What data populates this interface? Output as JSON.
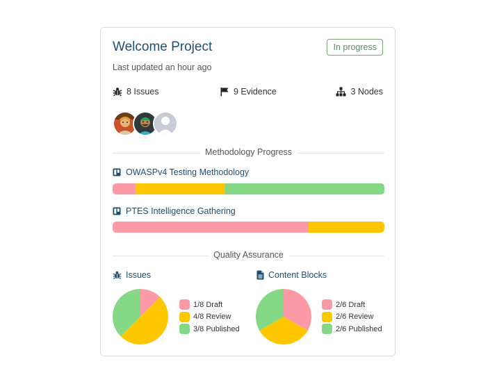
{
  "project": {
    "title": "Welcome Project",
    "status": "In progress",
    "updated": "Last updated an hour ago"
  },
  "stats": {
    "issues": "8 Issues",
    "evidence": "9 Evidence",
    "nodes": "3 Nodes"
  },
  "avatars": [
    {
      "icon": "user-avatar-1"
    },
    {
      "icon": "user-avatar-2"
    },
    {
      "icon": "default-avatar"
    }
  ],
  "methodology": {
    "heading": "Methodology Progress",
    "items": [
      {
        "name": "OWASPv4 Testing Methodology",
        "segments": [
          0.085,
          0.33,
          0.585
        ]
      },
      {
        "name": "PTES Intelligence Gathering",
        "segments": [
          0.72,
          0.28,
          0.0
        ]
      }
    ]
  },
  "qa": {
    "heading": "Quality Assurance",
    "issues": {
      "title": "Issues",
      "legend": [
        "1/8 Draft",
        "4/8 Review",
        "3/8 Published"
      ],
      "values": [
        1,
        4,
        3
      ]
    },
    "content_blocks": {
      "title": "Content Blocks",
      "legend": [
        "2/6 Draft",
        "2/6 Review",
        "2/6 Published"
      ],
      "values": [
        2,
        2,
        2
      ]
    }
  },
  "colors": {
    "draft": "#fd9aa7",
    "review": "#fdc700",
    "published": "#85d886",
    "link": "#1e4f73"
  }
}
